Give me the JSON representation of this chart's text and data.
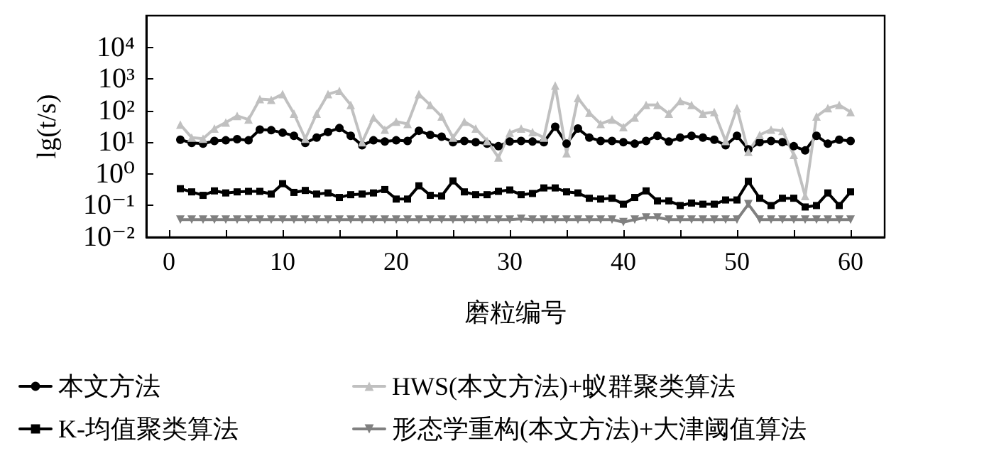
{
  "chart_data": {
    "type": "line",
    "xlabel": "磨粒编号",
    "ylabel": "lg(t/s)",
    "x": [
      1,
      2,
      3,
      4,
      5,
      6,
      7,
      8,
      9,
      10,
      11,
      12,
      13,
      14,
      15,
      16,
      17,
      18,
      19,
      20,
      21,
      22,
      23,
      24,
      25,
      26,
      27,
      28,
      29,
      30,
      31,
      32,
      33,
      34,
      35,
      36,
      37,
      38,
      39,
      40,
      41,
      42,
      43,
      44,
      45,
      46,
      47,
      48,
      49,
      50,
      51,
      52,
      53,
      54,
      55,
      56,
      57,
      58,
      59,
      60
    ],
    "xlim": [
      -2,
      63
    ],
    "xticks": [
      0,
      {
        "value": 5,
        "label": null
      },
      10,
      {
        "value": 15,
        "label": null
      },
      20,
      {
        "value": 25,
        "label": null
      },
      30,
      {
        "value": 35,
        "label": null
      },
      40,
      {
        "value": 45,
        "label": null
      },
      50,
      {
        "value": 55,
        "label": null
      },
      60
    ],
    "ylim": [
      0.01,
      100000
    ],
    "yticks": [
      {
        "value": 0.01,
        "label": "10⁻²"
      },
      {
        "value": 0.1,
        "label": "10⁻¹"
      },
      {
        "value": 1,
        "label": "10⁰"
      },
      {
        "value": 10,
        "label": "10¹"
      },
      {
        "value": 100,
        "label": "10²"
      },
      {
        "value": 1000,
        "label": "10³"
      },
      {
        "value": 10000,
        "label": "10⁴"
      }
    ],
    "log": "y",
    "grid": false,
    "legend": "bottom",
    "line_style": "solid",
    "series": [
      {
        "name": "本文方法",
        "color": "#000000",
        "marker": "circle",
        "values": [
          12,
          9.5,
          9,
          11,
          11.5,
          12.5,
          11.5,
          25,
          24,
          20,
          16,
          9.5,
          14,
          21,
          28,
          16,
          8,
          11.5,
          10.5,
          11.5,
          11,
          23,
          17,
          15,
          10,
          11,
          10,
          9,
          7.5,
          10.5,
          11,
          10.5,
          10,
          31,
          9,
          27,
          14,
          11,
          11,
          10,
          9,
          11,
          16,
          10.5,
          14,
          16,
          14,
          12,
          8,
          16,
          6,
          10,
          11,
          10,
          7.5,
          5.5,
          16,
          9,
          12,
          11
        ]
      },
      {
        "name": "HWS(本文方法)+蚁群聚类算法",
        "color": "#c0c0c0",
        "marker": "triangle",
        "values": [
          36,
          14,
          13,
          27,
          42,
          68,
          52,
          230,
          220,
          330,
          80,
          13,
          80,
          330,
          420,
          150,
          10,
          60,
          25,
          45,
          38,
          330,
          150,
          65,
          14,
          45,
          27,
          11,
          3.3,
          20,
          27,
          21,
          14,
          620,
          4.5,
          250,
          85,
          38,
          52,
          30,
          60,
          150,
          150,
          80,
          200,
          150,
          80,
          90,
          11,
          120,
          5,
          17,
          25,
          23,
          4,
          0.2,
          65,
          120,
          150,
          90
        ]
      },
      {
        "name": "K-均值聚类算法",
        "color": "#000000",
        "marker": "square",
        "values": [
          0.34,
          0.27,
          0.21,
          0.29,
          0.25,
          0.27,
          0.28,
          0.28,
          0.23,
          0.49,
          0.26,
          0.3,
          0.23,
          0.25,
          0.18,
          0.22,
          0.23,
          0.25,
          0.32,
          0.16,
          0.16,
          0.42,
          0.21,
          0.2,
          0.6,
          0.27,
          0.22,
          0.22,
          0.28,
          0.31,
          0.22,
          0.24,
          0.36,
          0.36,
          0.27,
          0.25,
          0.17,
          0.16,
          0.17,
          0.11,
          0.18,
          0.29,
          0.14,
          0.14,
          0.1,
          0.12,
          0.11,
          0.11,
          0.15,
          0.15,
          0.58,
          0.17,
          0.1,
          0.17,
          0.17,
          0.09,
          0.1,
          0.25,
          0.1,
          0.27
        ]
      },
      {
        "name": "形态学重构(本文方法)+大津阈值算法",
        "color": "#808080",
        "marker": "triangle-down",
        "values": [
          0.036,
          0.036,
          0.036,
          0.036,
          0.036,
          0.036,
          0.036,
          0.036,
          0.036,
          0.036,
          0.036,
          0.036,
          0.036,
          0.036,
          0.036,
          0.036,
          0.036,
          0.036,
          0.036,
          0.036,
          0.036,
          0.036,
          0.036,
          0.036,
          0.036,
          0.036,
          0.036,
          0.036,
          0.036,
          0.036,
          0.038,
          0.036,
          0.036,
          0.036,
          0.036,
          0.036,
          0.036,
          0.036,
          0.036,
          0.03,
          0.036,
          0.042,
          0.042,
          0.036,
          0.036,
          0.036,
          0.036,
          0.036,
          0.036,
          0.036,
          0.11,
          0.036,
          0.036,
          0.036,
          0.036,
          0.036,
          0.036,
          0.036,
          0.036,
          0.036
        ]
      }
    ]
  }
}
